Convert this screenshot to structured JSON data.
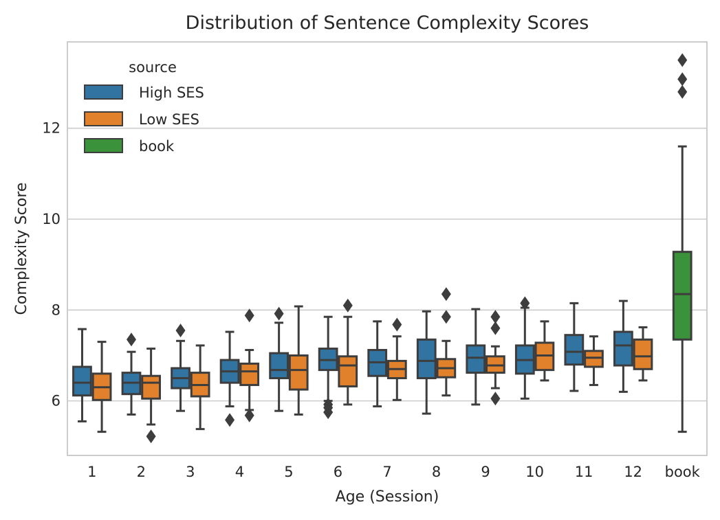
{
  "chart_data": {
    "type": "box",
    "title": "Distribution of Sentence Complexity Scores",
    "xlabel": "Age (Session)",
    "ylabel": "Complexity Score",
    "ylim": [
      4.8,
      13.9
    ],
    "yticks": [
      6,
      8,
      10,
      12
    ],
    "grid": "horizontal",
    "legend": {
      "title": "source",
      "placement": "top-left"
    },
    "categories": [
      "1",
      "2",
      "3",
      "4",
      "5",
      "6",
      "7",
      "8",
      "9",
      "10",
      "11",
      "12",
      "book"
    ],
    "series": [
      {
        "name": "High SES",
        "color": "#3274a1",
        "boxes": [
          {
            "category": "1",
            "whislo": 5.55,
            "q1": 6.12,
            "med": 6.4,
            "q3": 6.75,
            "whishi": 7.58,
            "fliers": []
          },
          {
            "category": "2",
            "whislo": 5.7,
            "q1": 6.15,
            "med": 6.4,
            "q3": 6.62,
            "whishi": 7.08,
            "fliers": [
              7.35
            ]
          },
          {
            "category": "3",
            "whislo": 5.78,
            "q1": 6.28,
            "med": 6.5,
            "q3": 6.72,
            "whishi": 7.32,
            "fliers": [
              7.55
            ]
          },
          {
            "category": "4",
            "whislo": 5.88,
            "q1": 6.4,
            "med": 6.65,
            "q3": 6.9,
            "whishi": 7.52,
            "fliers": [
              5.58
            ]
          },
          {
            "category": "5",
            "whislo": 5.78,
            "q1": 6.5,
            "med": 6.68,
            "q3": 7.05,
            "whishi": 7.72,
            "fliers": [
              7.92
            ]
          },
          {
            "category": "6",
            "whislo": 6.0,
            "q1": 6.68,
            "med": 6.9,
            "q3": 7.15,
            "whishi": 7.85,
            "fliers": [
              5.75,
              5.85,
              5.92
            ]
          },
          {
            "category": "7",
            "whislo": 5.88,
            "q1": 6.55,
            "med": 6.85,
            "q3": 7.12,
            "whishi": 7.75,
            "fliers": []
          },
          {
            "category": "8",
            "whislo": 5.72,
            "q1": 6.5,
            "med": 6.88,
            "q3": 7.35,
            "whishi": 7.97,
            "fliers": []
          },
          {
            "category": "9",
            "whislo": 5.92,
            "q1": 6.62,
            "med": 6.95,
            "q3": 7.22,
            "whishi": 8.02,
            "fliers": []
          },
          {
            "category": "10",
            "whislo": 6.05,
            "q1": 6.6,
            "med": 6.9,
            "q3": 7.22,
            "whishi": 8.05,
            "fliers": [
              8.15
            ]
          },
          {
            "category": "11",
            "whislo": 6.22,
            "q1": 6.8,
            "med": 7.08,
            "q3": 7.45,
            "whishi": 8.15,
            "fliers": []
          },
          {
            "category": "12",
            "whislo": 6.2,
            "q1": 6.78,
            "med": 7.22,
            "q3": 7.52,
            "whishi": 8.2,
            "fliers": []
          }
        ]
      },
      {
        "name": "Low SES",
        "color": "#e1812c",
        "boxes": [
          {
            "category": "1",
            "whislo": 5.32,
            "q1": 6.02,
            "med": 6.3,
            "q3": 6.6,
            "whishi": 7.3,
            "fliers": []
          },
          {
            "category": "2",
            "whislo": 5.48,
            "q1": 6.05,
            "med": 6.4,
            "q3": 6.55,
            "whishi": 7.15,
            "fliers": [
              5.22
            ]
          },
          {
            "category": "3",
            "whislo": 5.38,
            "q1": 6.1,
            "med": 6.35,
            "q3": 6.62,
            "whishi": 7.22,
            "fliers": []
          },
          {
            "category": "4",
            "whislo": 5.8,
            "q1": 6.35,
            "med": 6.65,
            "q3": 6.82,
            "whishi": 7.12,
            "fliers": [
              7.88,
              5.68
            ]
          },
          {
            "category": "5",
            "whislo": 5.7,
            "q1": 6.25,
            "med": 6.68,
            "q3": 7.0,
            "whishi": 8.08,
            "fliers": []
          },
          {
            "category": "6",
            "whislo": 5.92,
            "q1": 6.32,
            "med": 6.78,
            "q3": 6.98,
            "whishi": 7.85,
            "fliers": [
              8.1
            ]
          },
          {
            "category": "7",
            "whislo": 6.02,
            "q1": 6.5,
            "med": 6.7,
            "q3": 6.88,
            "whishi": 7.42,
            "fliers": [
              7.68
            ]
          },
          {
            "category": "8",
            "whislo": 6.12,
            "q1": 6.52,
            "med": 6.72,
            "q3": 6.92,
            "whishi": 7.32,
            "fliers": [
              8.35,
              7.85
            ]
          },
          {
            "category": "9",
            "whislo": 6.28,
            "q1": 6.62,
            "med": 6.78,
            "q3": 6.98,
            "whishi": 7.2,
            "fliers": [
              7.85,
              7.6,
              6.05
            ]
          },
          {
            "category": "10",
            "whislo": 6.45,
            "q1": 6.68,
            "med": 7.0,
            "q3": 7.28,
            "whishi": 7.75,
            "fliers": []
          },
          {
            "category": "11",
            "whislo": 6.35,
            "q1": 6.75,
            "med": 6.95,
            "q3": 7.1,
            "whishi": 7.42,
            "fliers": []
          },
          {
            "category": "12",
            "whislo": 6.45,
            "q1": 6.7,
            "med": 6.98,
            "q3": 7.35,
            "whishi": 7.62,
            "fliers": []
          }
        ]
      },
      {
        "name": "book",
        "color": "#3a923a",
        "boxes": [
          {
            "category": "book",
            "whislo": 5.32,
            "q1": 7.35,
            "med": 8.35,
            "q3": 9.28,
            "whishi": 11.6,
            "fliers": [
              12.8,
              13.08,
              13.5
            ]
          }
        ]
      }
    ]
  }
}
